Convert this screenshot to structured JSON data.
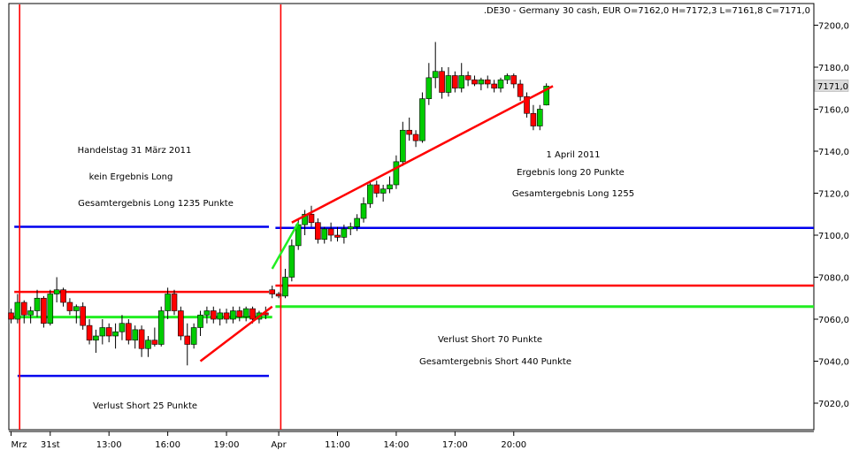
{
  "header": ".DE30 - Germany 30 cash, EUR O=7162,0 H=7172,3 L=7161,8 C=7171,0",
  "price_marker": "7171,0",
  "annotations": {
    "day1_title": "Handelstag 31 März 2011",
    "day1_long": "kein Ergebnis Long",
    "day1_total_long": "Gesamtergebnis Long 1235 Punkte",
    "day1_short": "Verlust Short 25 Punkte",
    "day2_title": "1 April 2011",
    "day2_long": "Ergebnis long 20 Punkte",
    "day2_total_long": "Gesamtergebnis Long 1255",
    "day2_short": "Verlust Short 70 Punkte",
    "day2_total_short": "Gesamtergebnis Short 440 Punkte"
  },
  "colors": {
    "bull": "#00cc00",
    "bear": "#ff0000",
    "hline_blue": "#0000ee",
    "hline_red": "#ff0000",
    "hline_green": "#22ee22",
    "separator": "#ff0000",
    "trend_red": "#ff0000"
  },
  "chart_data": {
    "type": "candlestick",
    "instrument": ".DE30 - Germany 30 cash, EUR",
    "ylim": [
      7000,
      7210
    ],
    "yticks": [
      "7200,0",
      "7180,0",
      "7160,0",
      "7140,0",
      "7120,0",
      "7100,0",
      "7080,0",
      "7060,0",
      "7040,0",
      "7020,0"
    ],
    "ytick_values": [
      7200,
      7180,
      7160,
      7140,
      7120,
      7100,
      7080,
      7060,
      7040,
      7020
    ],
    "xticks": [
      {
        "label": "Mrz",
        "i": 0
      },
      {
        "label": "31st",
        "i": 6
      },
      {
        "label": "13:00",
        "i": 15
      },
      {
        "label": "16:00",
        "i": 24
      },
      {
        "label": "19:00",
        "i": 33
      },
      {
        "label": "Apr",
        "i": 41
      },
      {
        "label": "11:00",
        "i": 50
      },
      {
        "label": "14:00",
        "i": 59
      },
      {
        "label": "17:00",
        "i": 68
      },
      {
        "label": "20:00",
        "i": 77
      }
    ],
    "day_separators_i": [
      0.5,
      40.5
    ],
    "candles": [
      {
        "o": 7063,
        "h": 7065,
        "l": 7058,
        "c": 7060
      },
      {
        "o": 7060,
        "h": 7072,
        "l": 7058,
        "c": 7068
      },
      {
        "o": 7068,
        "h": 7069,
        "l": 7058,
        "c": 7062
      },
      {
        "o": 7062,
        "h": 7066,
        "l": 7058,
        "c": 7064
      },
      {
        "o": 7064,
        "h": 7074,
        "l": 7061,
        "c": 7070
      },
      {
        "o": 7070,
        "h": 7071,
        "l": 7056,
        "c": 7058
      },
      {
        "o": 7058,
        "h": 7074,
        "l": 7057,
        "c": 7072
      },
      {
        "o": 7072,
        "h": 7080,
        "l": 7068,
        "c": 7074
      },
      {
        "o": 7074,
        "h": 7075,
        "l": 7066,
        "c": 7068
      },
      {
        "o": 7068,
        "h": 7070,
        "l": 7062,
        "c": 7064
      },
      {
        "o": 7064,
        "h": 7067,
        "l": 7058,
        "c": 7066
      },
      {
        "o": 7066,
        "h": 7068,
        "l": 7055,
        "c": 7057
      },
      {
        "o": 7057,
        "h": 7060,
        "l": 7048,
        "c": 7050
      },
      {
        "o": 7050,
        "h": 7055,
        "l": 7044,
        "c": 7052
      },
      {
        "o": 7052,
        "h": 7060,
        "l": 7048,
        "c": 7056
      },
      {
        "o": 7056,
        "h": 7058,
        "l": 7049,
        "c": 7052
      },
      {
        "o": 7052,
        "h": 7058,
        "l": 7046,
        "c": 7054
      },
      {
        "o": 7054,
        "h": 7062,
        "l": 7050,
        "c": 7058
      },
      {
        "o": 7058,
        "h": 7060,
        "l": 7048,
        "c": 7050
      },
      {
        "o": 7050,
        "h": 7057,
        "l": 7046,
        "c": 7055
      },
      {
        "o": 7055,
        "h": 7057,
        "l": 7042,
        "c": 7046
      },
      {
        "o": 7046,
        "h": 7052,
        "l": 7042,
        "c": 7050
      },
      {
        "o": 7050,
        "h": 7056,
        "l": 7047,
        "c": 7048
      },
      {
        "o": 7048,
        "h": 7066,
        "l": 7047,
        "c": 7064
      },
      {
        "o": 7064,
        "h": 7075,
        "l": 7060,
        "c": 7072
      },
      {
        "o": 7072,
        "h": 7074,
        "l": 7062,
        "c": 7064
      },
      {
        "o": 7064,
        "h": 7066,
        "l": 7050,
        "c": 7052
      },
      {
        "o": 7052,
        "h": 7058,
        "l": 7038,
        "c": 7048
      },
      {
        "o": 7048,
        "h": 7058,
        "l": 7046,
        "c": 7056
      },
      {
        "o": 7056,
        "h": 7064,
        "l": 7052,
        "c": 7062
      },
      {
        "o": 7062,
        "h": 7066,
        "l": 7058,
        "c": 7064
      },
      {
        "o": 7064,
        "h": 7066,
        "l": 7058,
        "c": 7060
      },
      {
        "o": 7060,
        "h": 7065,
        "l": 7057,
        "c": 7063
      },
      {
        "o": 7063,
        "h": 7065,
        "l": 7058,
        "c": 7060
      },
      {
        "o": 7060,
        "h": 7066,
        "l": 7058,
        "c": 7064
      },
      {
        "o": 7064,
        "h": 7066,
        "l": 7059,
        "c": 7061
      },
      {
        "o": 7061,
        "h": 7066,
        "l": 7059,
        "c": 7065
      },
      {
        "o": 7065,
        "h": 7066,
        "l": 7058,
        "c": 7060
      },
      {
        "o": 7060,
        "h": 7064,
        "l": 7058,
        "c": 7063
      },
      {
        "o": 7063,
        "h": 7066,
        "l": 7060,
        "c": 7062
      },
      {
        "o": 7074,
        "h": 7076,
        "l": 7070,
        "c": 7072
      },
      {
        "o": 7072,
        "h": 7073,
        "l": 7070,
        "c": 7071
      },
      {
        "o": 7071,
        "h": 7084,
        "l": 7070,
        "c": 7080
      },
      {
        "o": 7080,
        "h": 7098,
        "l": 7078,
        "c": 7095
      },
      {
        "o": 7095,
        "h": 7108,
        "l": 7093,
        "c": 7105
      },
      {
        "o": 7105,
        "h": 7112,
        "l": 7100,
        "c": 7110
      },
      {
        "o": 7110,
        "h": 7114,
        "l": 7104,
        "c": 7106
      },
      {
        "o": 7106,
        "h": 7108,
        "l": 7096,
        "c": 7098
      },
      {
        "o": 7098,
        "h": 7104,
        "l": 7096,
        "c": 7103
      },
      {
        "o": 7103,
        "h": 7106,
        "l": 7097,
        "c": 7100
      },
      {
        "o": 7100,
        "h": 7104,
        "l": 7097,
        "c": 7099
      },
      {
        "o": 7099,
        "h": 7105,
        "l": 7096,
        "c": 7103
      },
      {
        "o": 7103,
        "h": 7106,
        "l": 7100,
        "c": 7104
      },
      {
        "o": 7104,
        "h": 7110,
        "l": 7102,
        "c": 7108
      },
      {
        "o": 7108,
        "h": 7118,
        "l": 7106,
        "c": 7115
      },
      {
        "o": 7115,
        "h": 7126,
        "l": 7113,
        "c": 7124
      },
      {
        "o": 7124,
        "h": 7126,
        "l": 7118,
        "c": 7120
      },
      {
        "o": 7120,
        "h": 7124,
        "l": 7116,
        "c": 7122
      },
      {
        "o": 7122,
        "h": 7128,
        "l": 7120,
        "c": 7124
      },
      {
        "o": 7124,
        "h": 7138,
        "l": 7122,
        "c": 7135
      },
      {
        "o": 7135,
        "h": 7154,
        "l": 7133,
        "c": 7150
      },
      {
        "o": 7150,
        "h": 7156,
        "l": 7145,
        "c": 7148
      },
      {
        "o": 7148,
        "h": 7150,
        "l": 7142,
        "c": 7145
      },
      {
        "o": 7145,
        "h": 7168,
        "l": 7144,
        "c": 7165
      },
      {
        "o": 7165,
        "h": 7182,
        "l": 7162,
        "c": 7175
      },
      {
        "o": 7175,
        "h": 7192,
        "l": 7170,
        "c": 7178
      },
      {
        "o": 7178,
        "h": 7180,
        "l": 7165,
        "c": 7168
      },
      {
        "o": 7168,
        "h": 7180,
        "l": 7166,
        "c": 7176
      },
      {
        "o": 7176,
        "h": 7178,
        "l": 7168,
        "c": 7170
      },
      {
        "o": 7170,
        "h": 7182,
        "l": 7168,
        "c": 7176
      },
      {
        "o": 7176,
        "h": 7178,
        "l": 7171,
        "c": 7174
      },
      {
        "o": 7174,
        "h": 7176,
        "l": 7171,
        "c": 7172
      },
      {
        "o": 7172,
        "h": 7175,
        "l": 7169,
        "c": 7174
      },
      {
        "o": 7174,
        "h": 7176,
        "l": 7170,
        "c": 7172
      },
      {
        "o": 7172,
        "h": 7174,
        "l": 7168,
        "c": 7170
      },
      {
        "o": 7170,
        "h": 7175,
        "l": 7168,
        "c": 7174
      },
      {
        "o": 7174,
        "h": 7177,
        "l": 7172,
        "c": 7176
      },
      {
        "o": 7176,
        "h": 7177,
        "l": 7170,
        "c": 7172
      },
      {
        "o": 7172,
        "h": 7174,
        "l": 7164,
        "c": 7166
      },
      {
        "o": 7166,
        "h": 7168,
        "l": 7156,
        "c": 7158
      },
      {
        "o": 7158,
        "h": 7162,
        "l": 7150,
        "c": 7152
      },
      {
        "o": 7152,
        "h": 7162,
        "l": 7150,
        "c": 7160
      },
      {
        "o": 7162,
        "h": 7172.3,
        "l": 7161.8,
        "c": 7171
      }
    ],
    "horizontal_lines": [
      {
        "color": "blue",
        "value": 7104,
        "i_from": 0.5,
        "i_to": 39.5
      },
      {
        "color": "red",
        "value": 7073,
        "i_from": 0.5,
        "i_to": 39.5
      },
      {
        "color": "green",
        "value": 7061,
        "i_from": 0,
        "i_to": 40
      },
      {
        "color": "blue",
        "value": 7033,
        "i_from": 1,
        "i_to": 39.5
      },
      {
        "color": "blue",
        "value": 7103.5,
        "i_from": 40.5,
        "i_to": 125
      },
      {
        "color": "red",
        "value": 7076,
        "i_from": 40.5,
        "i_to": 125
      },
      {
        "color": "green",
        "value": 7066,
        "i_from": 40.5,
        "i_to": 125
      }
    ],
    "trend_lines": [
      {
        "color": "red",
        "i1": 29,
        "v1": 7040,
        "i2": 40,
        "v2": 7066
      },
      {
        "color": "red",
        "i1": 43,
        "v1": 7106,
        "i2": 83,
        "v2": 7171
      },
      {
        "color": "green",
        "i1": 40,
        "v1": 7084,
        "i2": 44,
        "v2": 7106
      }
    ]
  }
}
